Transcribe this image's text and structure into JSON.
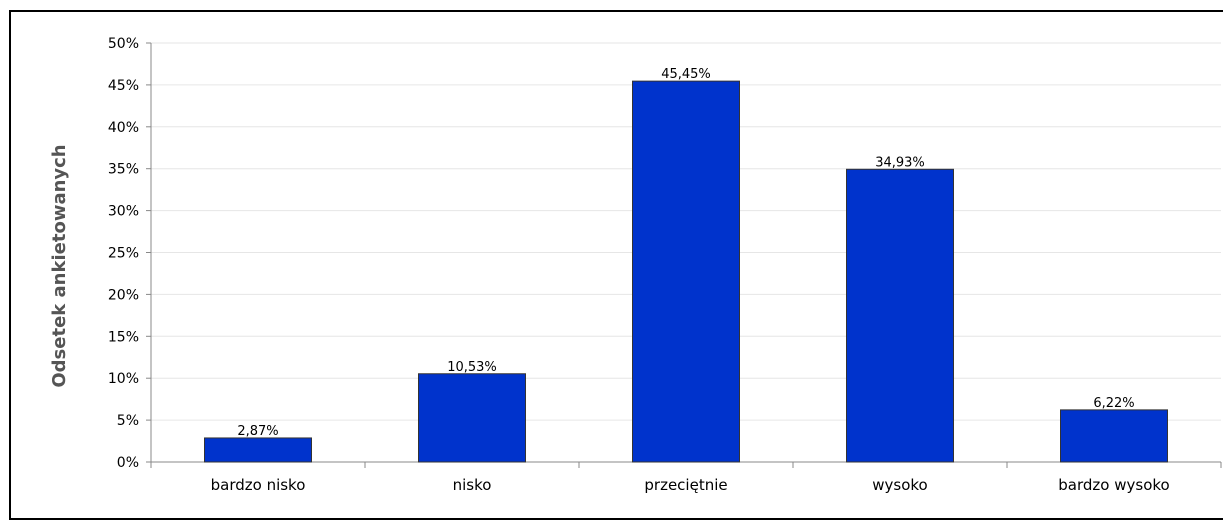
{
  "chart_data": {
    "type": "bar",
    "categories": [
      "bardzo nisko",
      "nisko",
      "przeciętnie",
      "wysoko",
      "bardzo wysoko"
    ],
    "values": [
      2.87,
      10.53,
      45.45,
      34.93,
      6.22
    ],
    "data_labels": [
      "2,87%",
      "10,53%",
      "45,45%",
      "34,93%",
      "6,22%"
    ],
    "title": "",
    "xlabel": "",
    "ylabel": "Odsetek ankietowanych",
    "ylim": [
      0,
      50
    ],
    "y_ticks": [
      "0%",
      "5%",
      "10%",
      "15%",
      "20%",
      "25%",
      "30%",
      "35%",
      "40%",
      "45%",
      "50%"
    ],
    "grid": true,
    "legend": "none",
    "bar_color": "#0033CC",
    "bar_edge_color": "#333333",
    "grid_color": "#e6e6e6"
  }
}
